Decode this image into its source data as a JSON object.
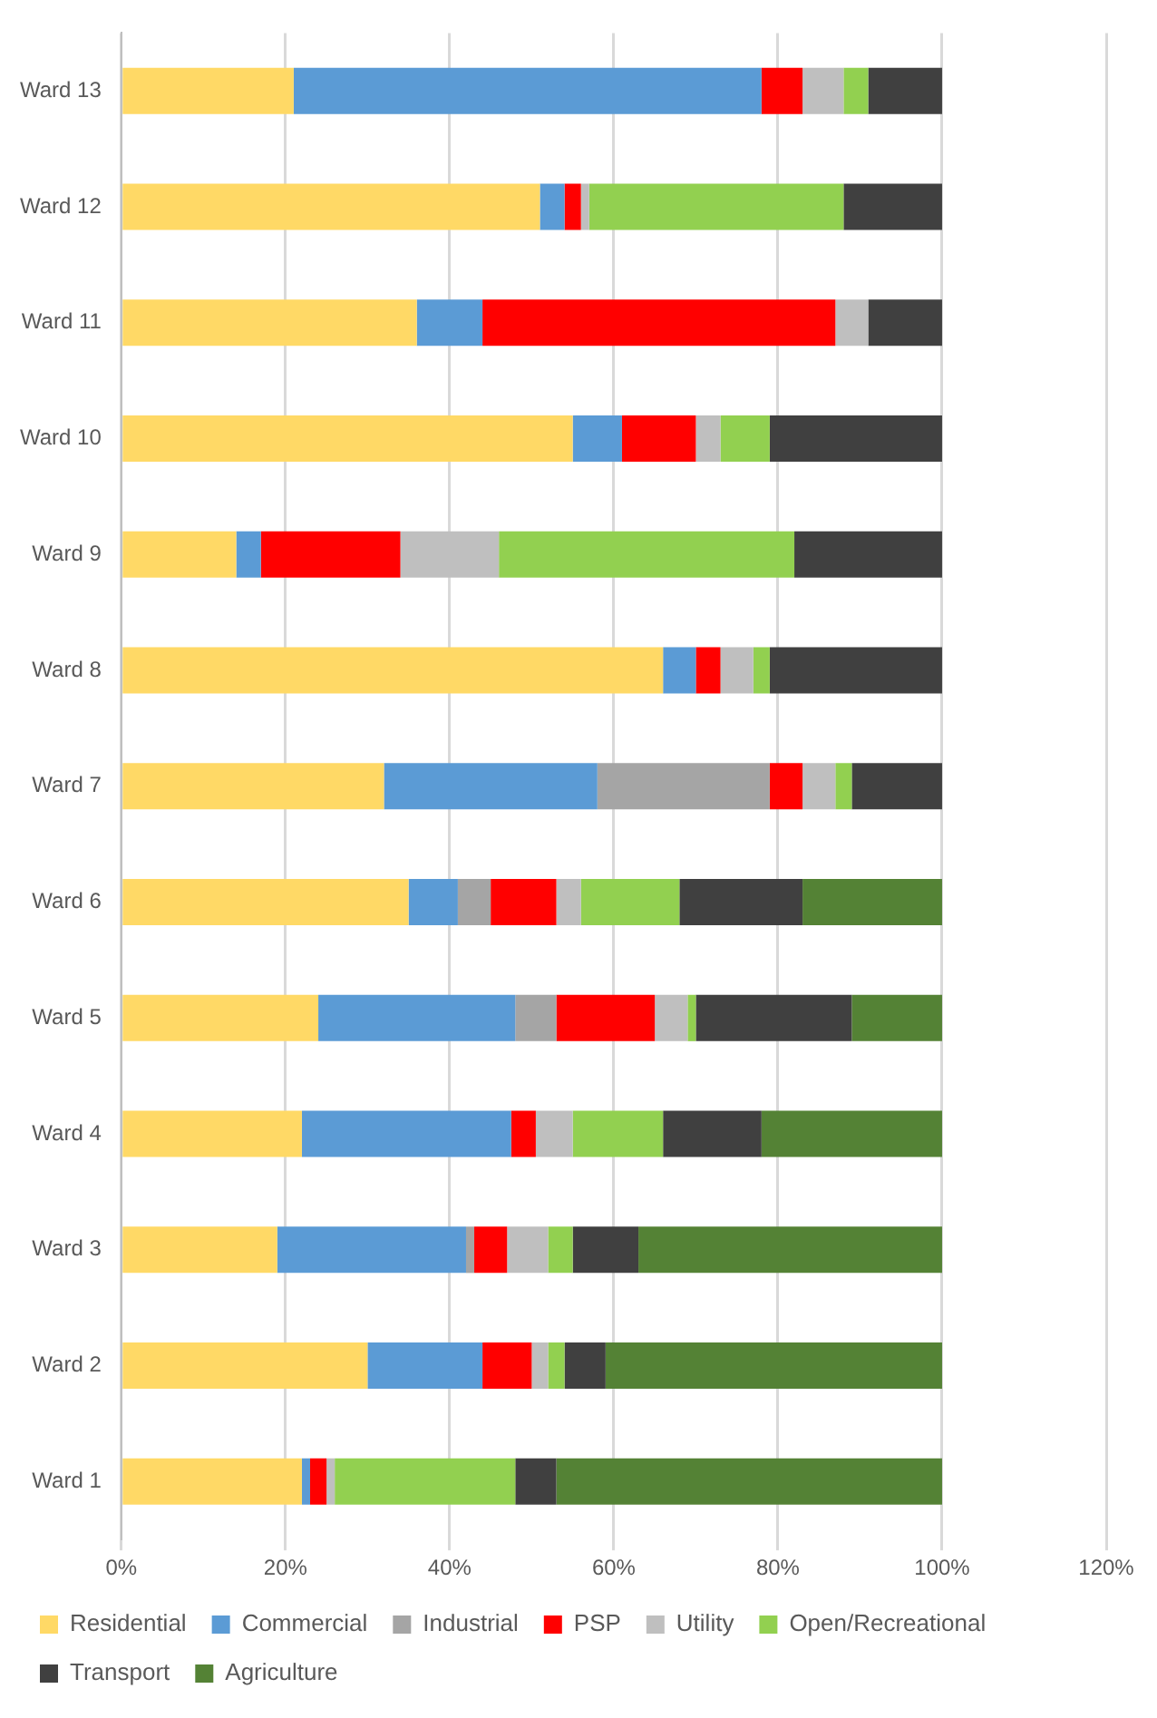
{
  "chart_data": {
    "type": "bar",
    "orientation": "horizontal",
    "stacked": true,
    "categories": [
      "Ward 13",
      "Ward 12",
      "Ward 11",
      "Ward 10",
      "Ward 9",
      "Ward 8",
      "Ward 7",
      "Ward 6",
      "Ward 5",
      "Ward 4",
      "Ward 3",
      "Ward 2",
      "Ward 1"
    ],
    "series": [
      {
        "name": "Residential",
        "color": "#ffd966",
        "values": [
          21,
          51,
          36,
          55,
          14,
          66,
          32,
          35,
          24,
          22,
          19,
          30,
          22
        ]
      },
      {
        "name": "Commercial",
        "color": "#5b9bd5",
        "values": [
          57,
          3,
          8,
          6,
          3,
          4,
          26,
          6,
          24,
          25.5,
          23,
          14,
          1
        ]
      },
      {
        "name": "Industrial",
        "color": "#a5a5a5",
        "values": [
          0,
          0,
          0,
          0,
          0,
          0,
          21,
          4,
          5,
          0,
          1,
          0,
          0
        ]
      },
      {
        "name": "PSP",
        "color": "#ff0000",
        "values": [
          5,
          2,
          43,
          9,
          17,
          3,
          4,
          8,
          12,
          3,
          4,
          6,
          2
        ]
      },
      {
        "name": "Utility",
        "color": "#bfbfbf",
        "values": [
          5,
          1,
          4,
          3,
          12,
          4,
          4,
          3,
          4,
          4.5,
          5,
          2,
          1
        ]
      },
      {
        "name": "Open/Recreational",
        "color": "#92d050",
        "values": [
          3,
          31,
          0,
          6,
          36,
          2,
          2,
          12,
          1,
          11,
          3,
          2,
          22
        ]
      },
      {
        "name": "Transport",
        "color": "#404040",
        "values": [
          9,
          12,
          9,
          21,
          18,
          21,
          11,
          15,
          19,
          12,
          8,
          5,
          5
        ]
      },
      {
        "name": "Agriculture",
        "color": "#548235",
        "values": [
          0,
          0,
          0,
          0,
          0,
          0,
          0,
          17,
          11,
          22,
          37,
          41,
          47
        ]
      }
    ],
    "xlim": [
      0,
      120
    ],
    "xticks": [
      {
        "value": 0,
        "label": "0%"
      },
      {
        "value": 20,
        "label": "20%"
      },
      {
        "value": 40,
        "label": "40%"
      },
      {
        "value": 60,
        "label": "60%"
      },
      {
        "value": 80,
        "label": "80%"
      },
      {
        "value": 100,
        "label": "100%"
      },
      {
        "value": 120,
        "label": "120%"
      }
    ],
    "grid": "x",
    "legend": "bottom"
  }
}
